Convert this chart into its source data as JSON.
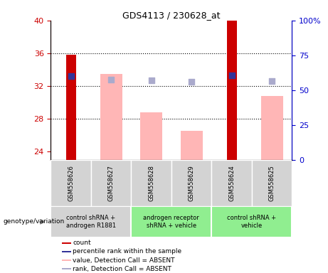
{
  "title": "GDS4113 / 230628_at",
  "samples": [
    "GSM558626",
    "GSM558627",
    "GSM558628",
    "GSM558629",
    "GSM558624",
    "GSM558625"
  ],
  "ylim_left": [
    23,
    40
  ],
  "ylim_right": [
    0,
    100
  ],
  "yticks_left": [
    24,
    28,
    32,
    36,
    40
  ],
  "yticks_right": [
    0,
    25,
    50,
    75,
    100
  ],
  "ytick_labels_right": [
    "0",
    "25",
    "50",
    "75",
    "100%"
  ],
  "red_bars": [
    35.8,
    null,
    null,
    null,
    40.0,
    null
  ],
  "pink_bars": [
    null,
    33.5,
    28.8,
    26.5,
    null,
    30.8
  ],
  "blue_dots_y": [
    33.2,
    null,
    null,
    null,
    33.3,
    null
  ],
  "lavender_dots_y": [
    null,
    32.8,
    32.7,
    32.5,
    null,
    32.6
  ],
  "bar_bottom": 23,
  "sample_bg_colors": [
    "#d3d3d3",
    "#d3d3d3",
    "#d3d3d3",
    "#d3d3d3",
    "#d3d3d3",
    "#d3d3d3"
  ],
  "group_info": [
    {
      "start": 0,
      "end": 1,
      "label": "control shRNA +\nandrogen R1881",
      "color": "#d3d3d3"
    },
    {
      "start": 2,
      "end": 3,
      "label": "androgen receptor\nshRNA + vehicle",
      "color": "#90ee90"
    },
    {
      "start": 4,
      "end": 5,
      "label": "control shRNA +\nvehicle",
      "color": "#90ee90"
    }
  ],
  "legend_items": [
    {
      "color": "#cc0000",
      "label": "count"
    },
    {
      "color": "#333399",
      "label": "percentile rank within the sample"
    },
    {
      "color": "#ffb6b6",
      "label": "value, Detection Call = ABSENT"
    },
    {
      "color": "#aaaacc",
      "label": "rank, Detection Call = ABSENT"
    }
  ],
  "left_axis_color": "#cc0000",
  "right_axis_color": "#0000cc",
  "red_bar_color": "#cc0000",
  "pink_bar_color": "#ffb6b6",
  "blue_dot_color": "#333399",
  "lavender_dot_color": "#aaaacc",
  "dot_size": 40,
  "red_bar_width": 0.25,
  "pink_bar_width": 0.55,
  "genotype_label": "genotype/variation",
  "grid_lines": [
    28,
    32,
    36
  ],
  "xlim": [
    -0.5,
    5.5
  ]
}
